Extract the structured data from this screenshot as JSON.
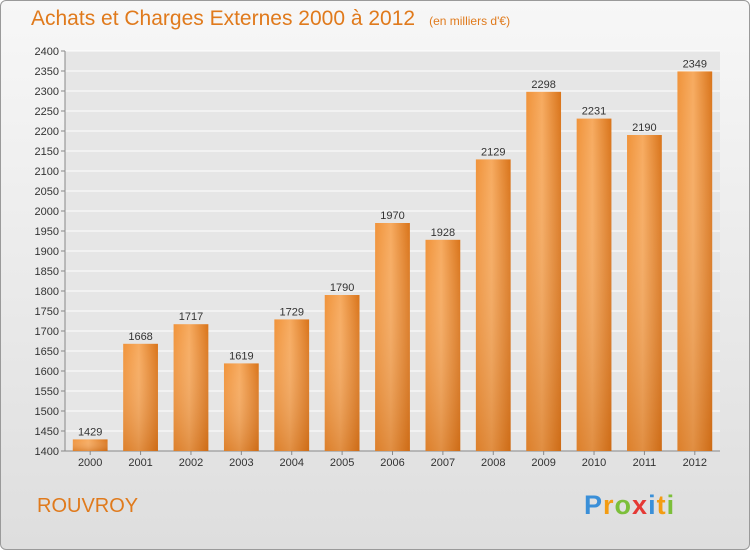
{
  "header": {
    "title": "Achats et Charges Externes 2000 à 2012",
    "unit": "(en milliers d'€)"
  },
  "footer": {
    "commune": "ROUVROY",
    "logo": {
      "text": "Proxiti",
      "letters": [
        {
          "char": "P",
          "color": "#3a8fd8"
        },
        {
          "char": "r",
          "color": "#f39c12"
        },
        {
          "char": "o",
          "color": "#7cbf3a"
        },
        {
          "char": "x",
          "color": "#e53935"
        },
        {
          "char": "i",
          "color": "#3a8fd8"
        },
        {
          "char": "t",
          "color": "#f39c12"
        },
        {
          "char": "i",
          "color": "#7cbf3a"
        }
      ]
    }
  },
  "colors": {
    "accent": "#e07a1c",
    "bar_light": "#f7a85a",
    "bar_dark": "#d9741a",
    "grid": "#ffffff"
  },
  "chart_data": {
    "type": "bar",
    "title": "Achats et Charges Externes 2000 à 2012",
    "subtitle": "(en milliers d'€)",
    "categories": [
      "2000",
      "2001",
      "2002",
      "2003",
      "2004",
      "2005",
      "2006",
      "2007",
      "2008",
      "2009",
      "2010",
      "2011",
      "2012"
    ],
    "values": [
      1429,
      1668,
      1717,
      1619,
      1729,
      1790,
      1970,
      1928,
      2129,
      2298,
      2231,
      2190,
      2349
    ],
    "ylim": [
      1400,
      2400
    ],
    "yticks": [
      1400,
      1450,
      1500,
      1550,
      1600,
      1650,
      1700,
      1750,
      1800,
      1850,
      1900,
      1950,
      2000,
      2050,
      2100,
      2150,
      2200,
      2250,
      2300,
      2350,
      2400
    ],
    "grid": true,
    "data_labels": true
  }
}
